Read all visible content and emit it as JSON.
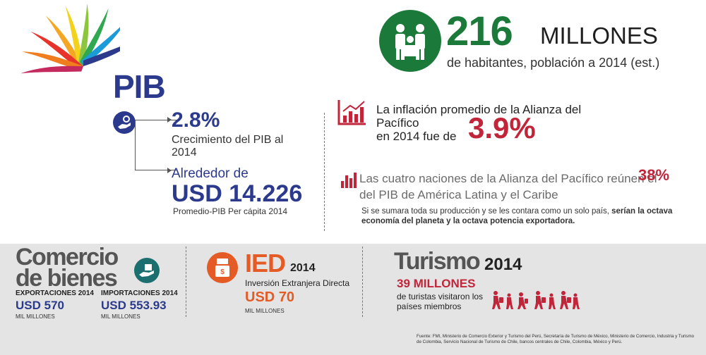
{
  "pib": {
    "title": "PIB",
    "growth_value": "2.8%",
    "growth_label": "Crecimiento del PIB al 2014",
    "gdppc_prefix": "Alrededor de",
    "gdppc_value": "USD 14.226",
    "gdppc_label": "Promedio-PIB Per cápita 2014"
  },
  "population": {
    "value": "216",
    "unit": "MILLONES",
    "label": "de habitantes, población a 2014 (est.)"
  },
  "inflation": {
    "text_line1": "La inflación promedio de la Alianza del Pacífico",
    "text_line2": "en 2014 fue de",
    "value": "3.9%"
  },
  "share": {
    "text_line1": "Las cuatro naciones de la Alianza del Pacífico reúnen el",
    "text_line2": "del PIB de América Latina y el Caribe",
    "value": "38%",
    "note_plain": "Si se sumara toda su producción y se les contara como un solo país, ",
    "note_bold": "serían la octava economía del planeta y la octava potencia exportadora."
  },
  "trade": {
    "title_line1": "Comercio",
    "title_line2": "de bienes",
    "exports_label": "EXPORTACIONES 2014",
    "exports_value": "USD 570",
    "exports_unit": "MIL MILLONES",
    "imports_label": "IMPORTACIONES 2014",
    "imports_value": "USD 553.93",
    "imports_unit": "MIL MILLONES"
  },
  "ied": {
    "title": "IED",
    "year": "2014",
    "label": "Inversión Extranjera Directa",
    "value": "USD 70",
    "unit": "MIL MILLONES"
  },
  "tourism": {
    "title": "Turismo",
    "year": "2014",
    "value": "39 MILLONES",
    "label": "de turistas visitaron los países miembros"
  },
  "source": "Fuente: FMI, Ministerio de Comercio Exterior y Turismo del Perú, Secretaría de Turismo de México, Ministerio de Comercio, Industria y Turismo de Colombia, Servicio Nacional de Turismo de Chile, bancos centrales de Chile, Colombia, México y Perú.",
  "colors": {
    "navy": "#2b3a8c",
    "green": "#1b7a3a",
    "red": "#c0253a",
    "orange": "#e55b25",
    "teal": "#1b6f6f",
    "band": "#e4e4e4"
  },
  "icons": {
    "logo": "alianza-pacifico-logo",
    "pib": "hand-coin-icon",
    "population": "family-icon",
    "inflation": "bar-chart-icon",
    "share": "bar-chart-icon",
    "trade": "hand-box-icon",
    "ied": "register-icon",
    "tourism": "tourists-icon"
  }
}
